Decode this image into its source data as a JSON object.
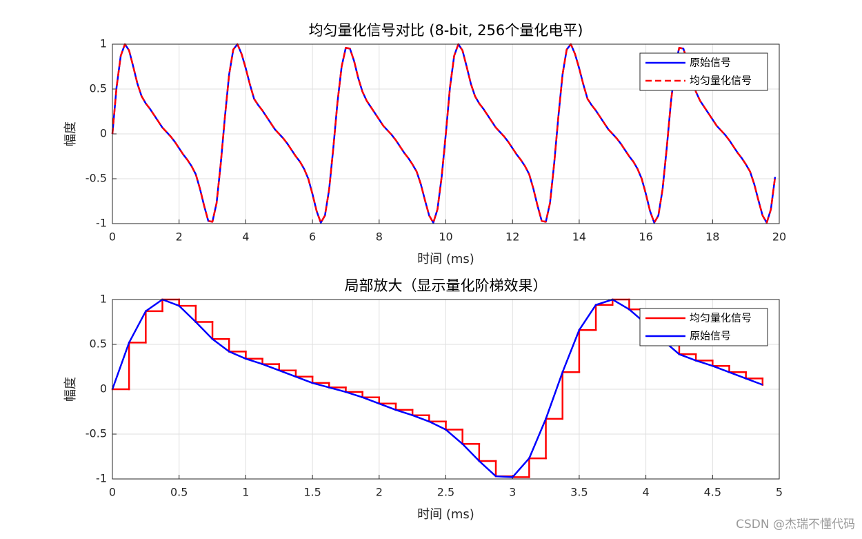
{
  "chart_data": [
    {
      "type": "line",
      "title": "均匀量化信号对比 (8-bit, 256个量化电平)",
      "xlabel": "时间 (ms)",
      "ylabel": "幅度",
      "xlim": [
        0,
        20
      ],
      "xticks": [
        0,
        2,
        4,
        6,
        8,
        10,
        12,
        14,
        16,
        18,
        20
      ],
      "ylim": [
        -1,
        1
      ],
      "yticks": [
        -1,
        -0.5,
        0,
        0.5,
        1
      ],
      "grid": true,
      "legend": "northeast",
      "x": [
        0,
        0.125,
        0.25,
        0.375,
        0.5,
        0.625,
        0.75,
        0.875,
        1,
        1.125,
        1.25,
        1.375,
        1.5,
        1.625,
        1.75,
        1.875,
        2,
        2.125,
        2.25,
        2.375,
        2.5,
        2.625,
        2.75,
        2.875,
        3,
        3.125,
        3.25,
        3.375,
        3.5,
        3.625,
        3.75,
        3.875,
        4,
        4.125,
        4.25,
        4.375,
        4.5,
        4.625,
        4.75,
        4.875,
        5,
        5.125,
        5.25,
        5.375,
        5.5,
        5.625,
        5.75,
        5.875,
        6,
        6.125,
        6.25,
        6.375,
        6.5,
        6.625,
        6.75,
        6.875,
        7,
        7.125,
        7.25,
        7.375,
        7.5,
        7.625,
        7.75,
        7.875,
        8,
        8.125,
        8.25,
        8.375,
        8.5,
        8.625,
        8.75,
        8.875,
        9,
        9.125,
        9.25,
        9.375,
        9.5,
        9.625,
        9.75,
        9.875,
        10,
        10.125,
        10.25,
        10.375,
        10.5,
        10.625,
        10.75,
        10.875,
        11,
        11.125,
        11.25,
        11.375,
        11.5,
        11.625,
        11.75,
        11.875,
        12,
        12.125,
        12.25,
        12.375,
        12.5,
        12.625,
        12.75,
        12.875,
        13,
        13.125,
        13.25,
        13.375,
        13.5,
        13.625,
        13.75,
        13.875,
        14,
        14.125,
        14.25,
        14.375,
        14.5,
        14.625,
        14.75,
        14.875,
        15,
        15.125,
        15.25,
        15.375,
        15.5,
        15.625,
        15.75,
        15.875,
        16,
        16.125,
        16.25,
        16.375,
        16.5,
        16.625,
        16.75,
        16.875,
        17,
        17.125,
        17.25,
        17.375,
        17.5,
        17.625,
        17.75,
        17.875,
        18,
        18.125,
        18.25,
        18.375,
        18.5,
        18.625,
        18.75,
        18.875,
        19,
        19.125,
        19.25,
        19.375,
        19.5,
        19.625,
        19.75,
        19.875
      ],
      "series": [
        {
          "name": "原始信号",
          "color": "#0000ff",
          "line_style": "solid",
          "values": [
            0,
            0.52,
            0.87,
            1.0,
            0.93,
            0.75,
            0.56,
            0.42,
            0.34,
            0.28,
            0.21,
            0.14,
            0.07,
            0.02,
            -0.03,
            -0.09,
            -0.16,
            -0.23,
            -0.29,
            -0.36,
            -0.45,
            -0.61,
            -0.8,
            -0.97,
            -0.98,
            -0.77,
            -0.33,
            0.19,
            0.66,
            0.94,
            1.0,
            0.89,
            0.73,
            0.55,
            0.39,
            0.32,
            0.26,
            0.19,
            0.12,
            0.05,
            0.0,
            -0.05,
            -0.11,
            -0.18,
            -0.25,
            -0.31,
            -0.39,
            -0.5,
            -0.67,
            -0.86,
            -0.99,
            -0.91,
            -0.62,
            -0.16,
            0.35,
            0.75,
            0.96,
            0.95,
            0.81,
            0.62,
            0.47,
            0.37,
            0.3,
            0.23,
            0.16,
            0.09,
            0.04,
            -0.01,
            -0.07,
            -0.14,
            -0.21,
            -0.27,
            -0.34,
            -0.42,
            -0.56,
            -0.74,
            -0.91,
            -0.99,
            -0.84,
            -0.48,
            0,
            0.52,
            0.87,
            1.0,
            0.93,
            0.75,
            0.56,
            0.42,
            0.34,
            0.28,
            0.21,
            0.14,
            0.07,
            0.02,
            -0.03,
            -0.09,
            -0.16,
            -0.23,
            -0.29,
            -0.36,
            -0.45,
            -0.61,
            -0.8,
            -0.97,
            -0.98,
            -0.77,
            -0.33,
            0.19,
            0.66,
            0.94,
            1.0,
            0.89,
            0.73,
            0.55,
            0.39,
            0.32,
            0.26,
            0.19,
            0.12,
            0.05,
            0.0,
            -0.05,
            -0.11,
            -0.18,
            -0.25,
            -0.31,
            -0.39,
            -0.5,
            -0.67,
            -0.86,
            -0.99,
            -0.91,
            -0.62,
            -0.16,
            0.35,
            0.75,
            0.96,
            0.95,
            0.81,
            0.62,
            0.47,
            0.37,
            0.3,
            0.23,
            0.16,
            0.09,
            0.04,
            -0.01,
            -0.07,
            -0.14,
            -0.21,
            -0.27,
            -0.34,
            -0.42,
            -0.56,
            -0.74,
            -0.91,
            -0.99,
            -0.84,
            -0.48
          ]
        },
        {
          "name": "均匀量化信号",
          "color": "#ff0000",
          "line_style": "dashed",
          "values": [
            0,
            0.52,
            0.87,
            1.0,
            0.93,
            0.75,
            0.56,
            0.42,
            0.34,
            0.28,
            0.21,
            0.14,
            0.07,
            0.02,
            -0.03,
            -0.09,
            -0.16,
            -0.23,
            -0.29,
            -0.36,
            -0.45,
            -0.61,
            -0.8,
            -0.97,
            -0.98,
            -0.77,
            -0.33,
            0.19,
            0.66,
            0.94,
            1.0,
            0.89,
            0.73,
            0.55,
            0.39,
            0.32,
            0.26,
            0.19,
            0.12,
            0.05,
            0.0,
            -0.05,
            -0.11,
            -0.18,
            -0.25,
            -0.31,
            -0.39,
            -0.5,
            -0.67,
            -0.86,
            -0.99,
            -0.91,
            -0.62,
            -0.16,
            0.35,
            0.75,
            0.96,
            0.95,
            0.81,
            0.62,
            0.47,
            0.37,
            0.3,
            0.23,
            0.16,
            0.09,
            0.04,
            -0.01,
            -0.07,
            -0.14,
            -0.21,
            -0.27,
            -0.34,
            -0.42,
            -0.56,
            -0.74,
            -0.91,
            -0.99,
            -0.84,
            -0.48,
            0,
            0.52,
            0.87,
            1.0,
            0.93,
            0.75,
            0.56,
            0.42,
            0.34,
            0.28,
            0.21,
            0.14,
            0.07,
            0.02,
            -0.03,
            -0.09,
            -0.16,
            -0.23,
            -0.29,
            -0.36,
            -0.45,
            -0.61,
            -0.8,
            -0.97,
            -0.98,
            -0.77,
            -0.33,
            0.19,
            0.66,
            0.94,
            1.0,
            0.89,
            0.73,
            0.55,
            0.39,
            0.32,
            0.26,
            0.19,
            0.12,
            0.05,
            0.0,
            -0.05,
            -0.11,
            -0.18,
            -0.25,
            -0.31,
            -0.39,
            -0.5,
            -0.67,
            -0.86,
            -0.99,
            -0.91,
            -0.62,
            -0.16,
            0.35,
            0.75,
            0.96,
            0.95,
            0.81,
            0.62,
            0.47,
            0.37,
            0.3,
            0.23,
            0.16,
            0.09,
            0.04,
            -0.01,
            -0.07,
            -0.14,
            -0.21,
            -0.27,
            -0.34,
            -0.42,
            -0.56,
            -0.74,
            -0.91,
            -0.99,
            -0.84,
            -0.48
          ]
        }
      ]
    },
    {
      "type": "line",
      "title": "局部放大（显示量化阶梯效果）",
      "xlabel": "时间 (ms)",
      "ylabel": "幅度",
      "xlim": [
        0,
        5
      ],
      "xticks": [
        0,
        0.5,
        1,
        1.5,
        2,
        2.5,
        3,
        3.5,
        4,
        4.5,
        5
      ],
      "ylim": [
        -1,
        1
      ],
      "yticks": [
        -1,
        -0.5,
        0,
        0.5,
        1
      ],
      "grid": true,
      "legend": "northeast",
      "x": [
        0,
        0.125,
        0.25,
        0.375,
        0.5,
        0.625,
        0.75,
        0.875,
        1,
        1.125,
        1.25,
        1.375,
        1.5,
        1.625,
        1.75,
        1.875,
        2,
        2.125,
        2.25,
        2.375,
        2.5,
        2.625,
        2.75,
        2.875,
        3,
        3.125,
        3.25,
        3.375,
        3.5,
        3.625,
        3.75,
        3.875,
        4,
        4.125,
        4.25,
        4.375,
        4.5,
        4.625,
        4.75,
        4.875
      ],
      "series": [
        {
          "name": "均匀量化信号",
          "color": "#ff0000",
          "line_style": "solid",
          "draw_style": "stairs",
          "values": [
            0,
            0.52,
            0.87,
            1.0,
            0.93,
            0.75,
            0.56,
            0.42,
            0.34,
            0.28,
            0.21,
            0.14,
            0.07,
            0.02,
            -0.03,
            -0.09,
            -0.16,
            -0.23,
            -0.29,
            -0.36,
            -0.45,
            -0.61,
            -0.8,
            -0.97,
            -0.98,
            -0.77,
            -0.33,
            0.19,
            0.66,
            0.94,
            1.0,
            0.89,
            0.73,
            0.55,
            0.39,
            0.32,
            0.26,
            0.19,
            0.12,
            0.05
          ]
        },
        {
          "name": "原始信号",
          "color": "#0000ff",
          "line_style": "solid",
          "values": [
            0,
            0.52,
            0.87,
            1.0,
            0.93,
            0.75,
            0.56,
            0.42,
            0.34,
            0.28,
            0.21,
            0.14,
            0.07,
            0.02,
            -0.03,
            -0.09,
            -0.16,
            -0.23,
            -0.29,
            -0.36,
            -0.45,
            -0.61,
            -0.8,
            -0.97,
            -0.98,
            -0.77,
            -0.33,
            0.19,
            0.66,
            0.94,
            1.0,
            0.89,
            0.73,
            0.55,
            0.39,
            0.32,
            0.26,
            0.19,
            0.12,
            0.05
          ]
        }
      ]
    }
  ],
  "watermark": "CSDN @杰瑞不懂代码"
}
